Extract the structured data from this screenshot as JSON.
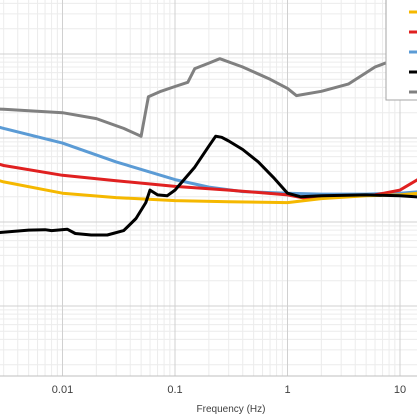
{
  "chart_data": {
    "type": "line",
    "x_scale": "log",
    "xlabel": "Frequency (Hz)",
    "xlim": [
      0.001,
      15
    ],
    "x_ticks": [
      {
        "value": 0.01,
        "label": "0.01"
      },
      {
        "value": 0.1,
        "label": "0.1"
      },
      {
        "value": 1,
        "label": "1"
      },
      {
        "value": 10,
        "label": "10"
      }
    ],
    "y_scale": "log",
    "ylim": [
      0.001,
      10
    ],
    "y_ticks_visible": false,
    "grid": true,
    "legend": {
      "placement": "top-right",
      "entries": [
        {
          "color": "#f5b800"
        },
        {
          "color": "#e02020"
        },
        {
          "color": "#5b9bd5"
        },
        {
          "color": "#000000"
        },
        {
          "color": "#808080"
        }
      ]
    },
    "series": [
      {
        "color": "#808080",
        "points": [
          [
            0.001,
            2.3
          ],
          [
            0.003,
            2.2
          ],
          [
            0.01,
            2.0
          ],
          [
            0.02,
            1.7
          ],
          [
            0.035,
            1.3
          ],
          [
            0.05,
            1.05
          ],
          [
            0.058,
            3.1
          ],
          [
            0.075,
            3.6
          ],
          [
            0.1,
            4.1
          ],
          [
            0.13,
            4.6
          ],
          [
            0.15,
            6.7
          ],
          [
            0.2,
            7.8
          ],
          [
            0.25,
            8.8
          ],
          [
            0.4,
            7.0
          ],
          [
            0.7,
            5.0
          ],
          [
            1.0,
            3.9
          ],
          [
            1.2,
            3.2
          ],
          [
            2.0,
            3.6
          ],
          [
            3.5,
            4.4
          ],
          [
            6.0,
            7.0
          ],
          [
            9.0,
            8.6
          ],
          [
            15.0,
            9.6
          ]
        ]
      },
      {
        "color": "#5b9bd5",
        "points": [
          [
            0.001,
            1.9
          ],
          [
            0.003,
            1.3
          ],
          [
            0.01,
            0.87
          ],
          [
            0.03,
            0.52
          ],
          [
            0.1,
            0.32
          ],
          [
            0.2,
            0.26
          ],
          [
            0.4,
            0.23
          ],
          [
            1.0,
            0.22
          ],
          [
            2.0,
            0.215
          ],
          [
            5.0,
            0.215
          ],
          [
            10.0,
            0.22
          ],
          [
            15.0,
            0.23
          ]
        ]
      },
      {
        "color": "#e02020",
        "points": [
          [
            0.001,
            0.73
          ],
          [
            0.003,
            0.47
          ],
          [
            0.01,
            0.36
          ],
          [
            0.03,
            0.31
          ],
          [
            0.1,
            0.265
          ],
          [
            0.3,
            0.24
          ],
          [
            1.0,
            0.21
          ],
          [
            1.5,
            0.19
          ],
          [
            3.0,
            0.2
          ],
          [
            6.0,
            0.21
          ],
          [
            10.0,
            0.24
          ],
          [
            15.0,
            0.33
          ]
        ]
      },
      {
        "color": "#f5b800",
        "points": [
          [
            0.001,
            0.45
          ],
          [
            0.003,
            0.3
          ],
          [
            0.01,
            0.22
          ],
          [
            0.03,
            0.195
          ],
          [
            0.1,
            0.18
          ],
          [
            0.3,
            0.174
          ],
          [
            1.0,
            0.17
          ],
          [
            2.0,
            0.19
          ],
          [
            5.0,
            0.205
          ],
          [
            10.0,
            0.21
          ],
          [
            15.0,
            0.22
          ]
        ]
      },
      {
        "color": "#000000",
        "points": [
          [
            0.001,
            0.072
          ],
          [
            0.0013,
            0.07
          ],
          [
            0.0025,
            0.074
          ],
          [
            0.005,
            0.08
          ],
          [
            0.007,
            0.081
          ],
          [
            0.008,
            0.079
          ],
          [
            0.009,
            0.08
          ],
          [
            0.011,
            0.082
          ],
          [
            0.013,
            0.073
          ],
          [
            0.018,
            0.07
          ],
          [
            0.025,
            0.07
          ],
          [
            0.035,
            0.079
          ],
          [
            0.045,
            0.11
          ],
          [
            0.055,
            0.17
          ],
          [
            0.06,
            0.24
          ],
          [
            0.07,
            0.21
          ],
          [
            0.085,
            0.205
          ],
          [
            0.1,
            0.24
          ],
          [
            0.15,
            0.45
          ],
          [
            0.2,
            0.8
          ],
          [
            0.23,
            1.05
          ],
          [
            0.26,
            1.02
          ],
          [
            0.3,
            0.92
          ],
          [
            0.4,
            0.73
          ],
          [
            0.55,
            0.52
          ],
          [
            0.75,
            0.34
          ],
          [
            1.0,
            0.22
          ],
          [
            1.3,
            0.2
          ],
          [
            2.0,
            0.205
          ],
          [
            5.0,
            0.21
          ],
          [
            10.0,
            0.205
          ],
          [
            15.0,
            0.198
          ]
        ]
      }
    ]
  }
}
